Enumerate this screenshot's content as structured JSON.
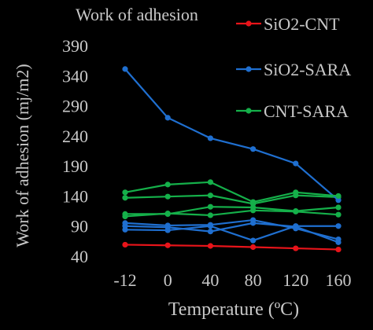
{
  "chart_data": {
    "type": "line",
    "title": "Work of adhesion",
    "xlabel": "Temperature (ºC)",
    "ylabel": "Work of adhesion (mj/m2)",
    "x": [
      "-12",
      "0",
      "40",
      "80",
      "120",
      "160"
    ],
    "ylim": [
      40,
      390
    ],
    "yticks": [
      "40",
      "90",
      "140",
      "190",
      "240",
      "290",
      "340",
      "390"
    ],
    "grid": false,
    "legend_position": "right",
    "series": [
      {
        "name": "SiO2-CNT",
        "color": "#e8141a",
        "values": [
          59,
          58,
          57,
          55,
          53,
          51
        ]
      },
      {
        "name": "SiO2-SARA",
        "color": "#1f6fd0",
        "values": [
          351,
          270,
          236,
          218,
          194,
          133
        ]
      },
      {
        "name": "CNT-SARA",
        "color": "#15b04a",
        "values": [
          146,
          159,
          163,
          130,
          146,
          140
        ]
      }
    ],
    "unlabeled_series": [
      {
        "color": "#15b04a",
        "values": [
          137,
          139,
          141,
          127,
          141,
          138
        ]
      },
      {
        "color": "#15b04a",
        "values": [
          110,
          110,
          122,
          121,
          115,
          121
        ]
      },
      {
        "color": "#15b04a",
        "values": [
          106,
          111,
          108,
          116,
          114,
          109
        ]
      },
      {
        "color": "#1f6fd0",
        "values": [
          95,
          91,
          92,
          100,
          86,
          68
        ]
      },
      {
        "color": "#1f6fd0",
        "values": [
          90,
          88,
          81,
          95,
          89,
          63
        ]
      },
      {
        "color": "#1f6fd0",
        "values": [
          84,
          83,
          90,
          66,
          90,
          90
        ]
      }
    ]
  }
}
